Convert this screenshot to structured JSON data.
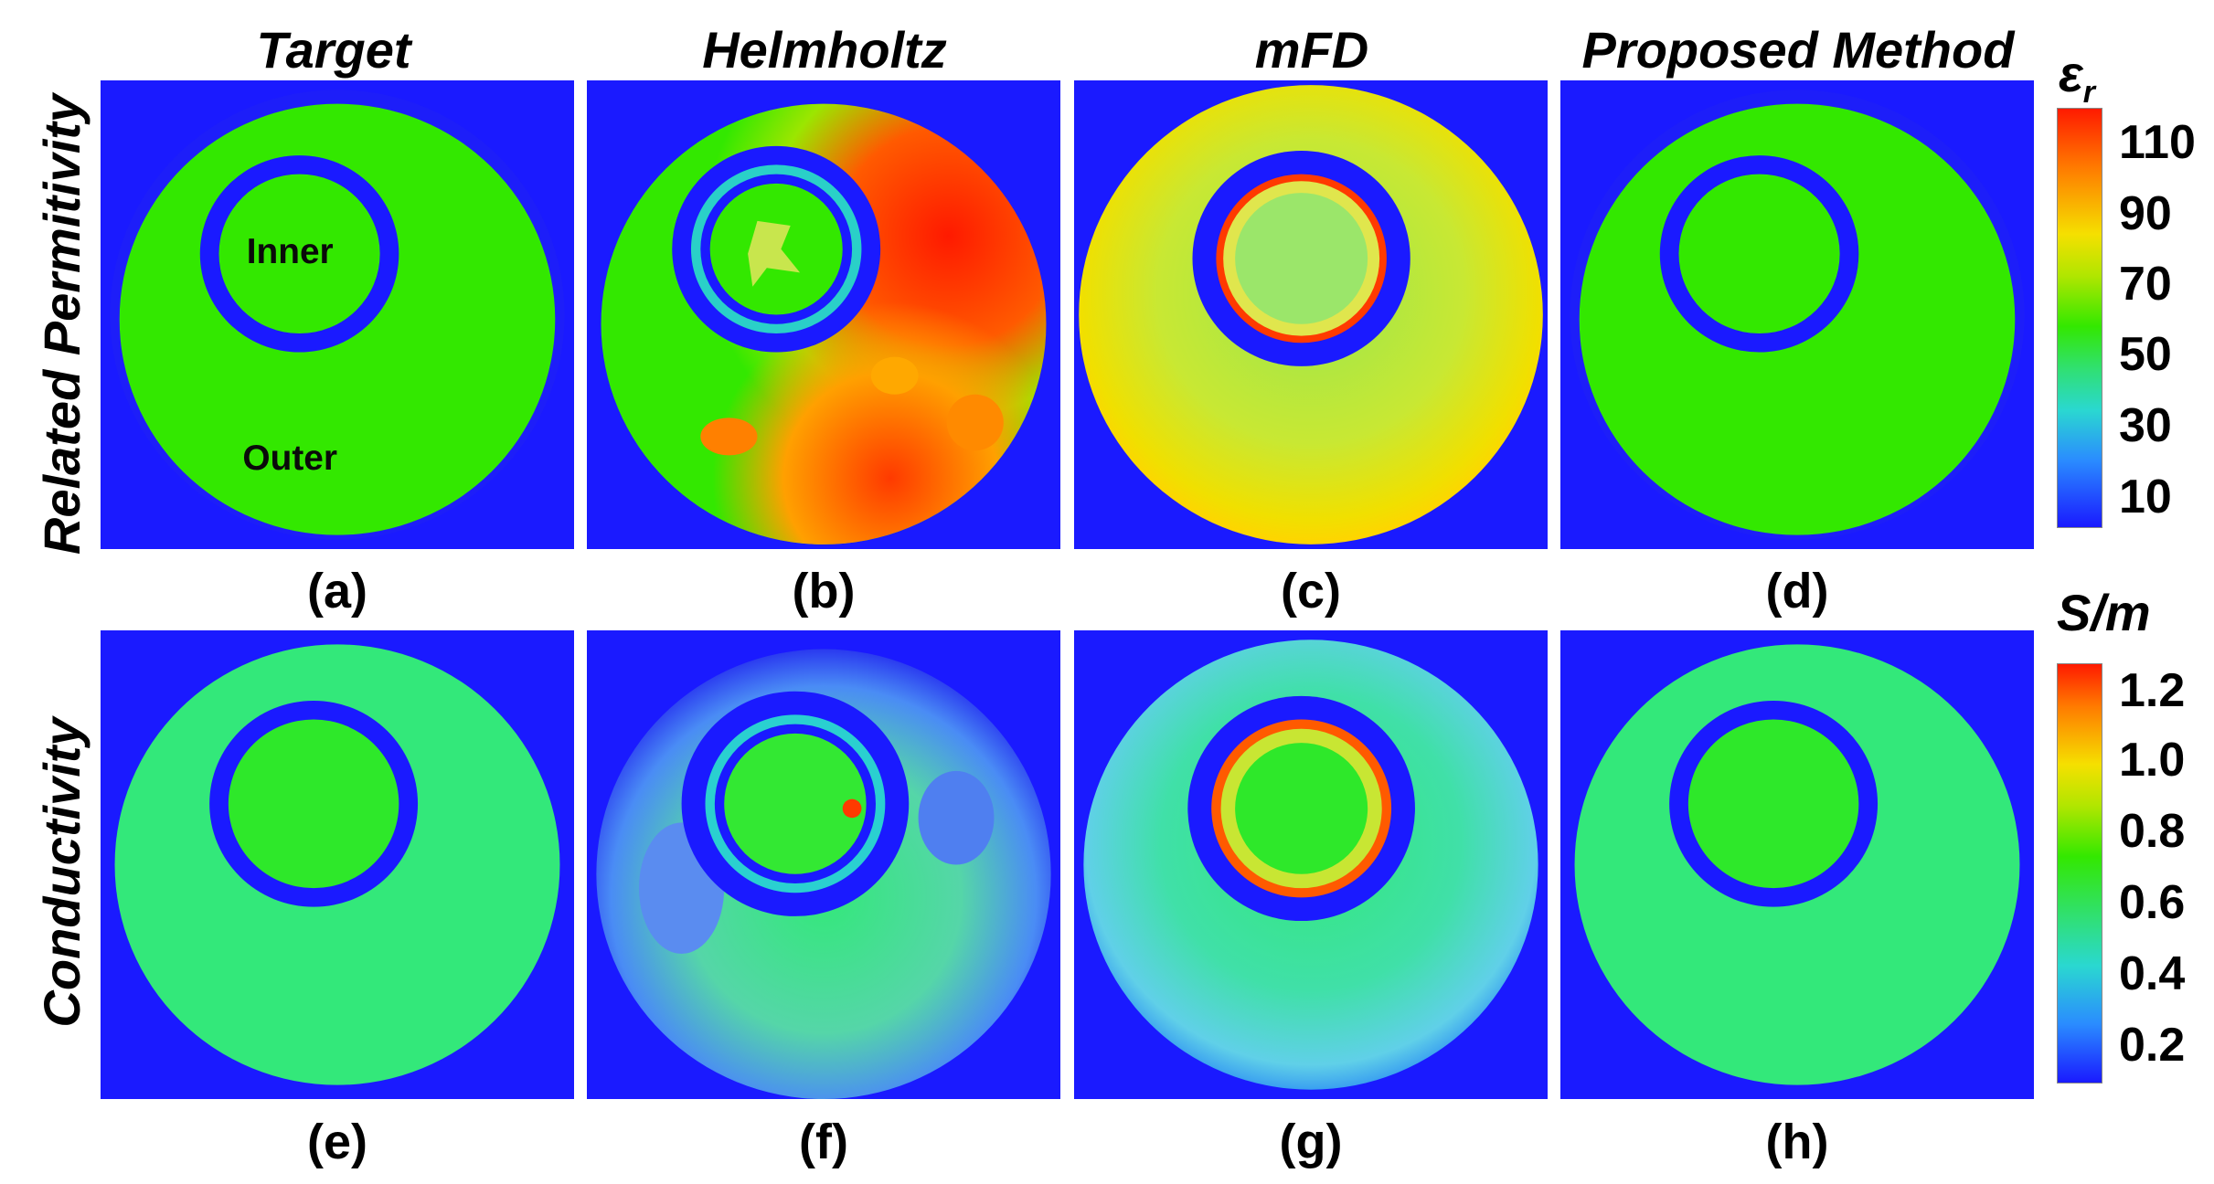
{
  "column_titles": [
    "Target",
    "Helmholtz",
    "mFD",
    "Proposed Method"
  ],
  "row_labels": [
    "Related Permitivity",
    "Conductivity"
  ],
  "panel_labels": [
    "(a)",
    "(b)",
    "(c)",
    "(d)",
    "(e)",
    "(f)",
    "(g)",
    "(h)"
  ],
  "region_labels": {
    "inner": "Inner",
    "outer": "Outer"
  },
  "colorbars": [
    {
      "title": "ε",
      "title_sub": "r",
      "ticks": [
        "110",
        "90",
        "70",
        "50",
        "30",
        "10"
      ]
    },
    {
      "title": "S/m",
      "ticks": [
        "1.2",
        "1.0",
        "0.8",
        "0.6",
        "0.4",
        "0.2"
      ]
    }
  ],
  "colors": {
    "background_blue": "#1a1aff",
    "green": "#33e800",
    "teal_green": "#33e866",
    "yellow": "#e6e633",
    "red": "#ff2a00",
    "light_blue": "#4da6ff"
  }
}
